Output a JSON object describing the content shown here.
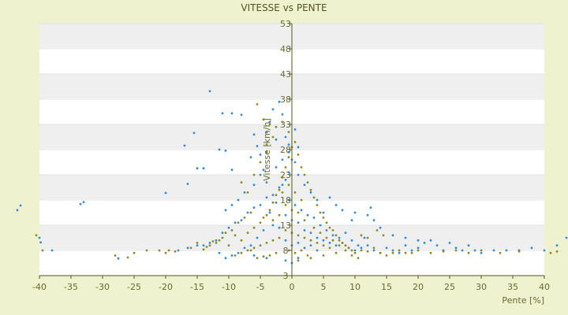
{
  "chart_data": {
    "type": "scatter",
    "title": "VITESSE vs PENTE",
    "xlabel": "Pente [%]",
    "ylabel": "Vitesse [km/h]",
    "xlim": [
      -40,
      40
    ],
    "ylim": [
      3,
      53
    ],
    "xticks": [
      -40,
      -35,
      -30,
      -25,
      -20,
      -15,
      -10,
      -5,
      0,
      5,
      10,
      15,
      20,
      25,
      30,
      35,
      40
    ],
    "yticks": [
      3,
      8,
      13,
      18,
      23,
      28,
      33,
      38,
      43,
      48,
      53
    ],
    "grid": "horizontal alternating bands",
    "legend": "none",
    "colors": {
      "background": "#eef2cf",
      "plot_area": "#ffffff",
      "band": "#efefef",
      "axis": "#555522",
      "series_a": "#2e8bd6",
      "series_b": "#8a8a20"
    },
    "series": [
      {
        "color": "#2e8bd6",
        "points": [
          [
            -43.5,
            16.0
          ],
          [
            -43.0,
            16.9
          ],
          [
            -40.0,
            10.5
          ],
          [
            -39.8,
            9.6
          ],
          [
            -38.0,
            8.0
          ],
          [
            -33.5,
            17.2
          ],
          [
            -33.0,
            17.6
          ],
          [
            -27.5,
            6.4
          ],
          [
            -20.0,
            19.4
          ],
          [
            -17.0,
            28.8
          ],
          [
            -16.5,
            21.2
          ],
          [
            -15.5,
            31.3
          ],
          [
            -15.0,
            24.3
          ],
          [
            -14.0,
            24.3
          ],
          [
            -13.0,
            39.6
          ],
          [
            -11.0,
            35.2
          ],
          [
            -10.5,
            27.8
          ],
          [
            -9.5,
            35.2
          ],
          [
            -9.5,
            24.0
          ],
          [
            -8.0,
            34.9
          ],
          [
            -11.5,
            28.0
          ],
          [
            -6.5,
            26.5
          ],
          [
            -6.0,
            31.0
          ],
          [
            -5.5,
            28.7
          ],
          [
            -5.0,
            27.0
          ],
          [
            -4.5,
            24.0
          ],
          [
            -4.0,
            31.5
          ],
          [
            -3.5,
            33.5
          ],
          [
            -3.0,
            36.0
          ],
          [
            -2.5,
            30.0
          ],
          [
            -2.0,
            37.5
          ],
          [
            -1.5,
            35.0
          ],
          [
            -1.0,
            30.5
          ],
          [
            -0.5,
            29.0
          ],
          [
            0.0,
            26.0
          ],
          [
            0.5,
            32.0
          ],
          [
            -1.0,
            22.0
          ],
          [
            -2.0,
            20.5
          ],
          [
            -3.0,
            19.0
          ],
          [
            -4.0,
            18.5
          ],
          [
            -5.0,
            17.0
          ],
          [
            -6.0,
            16.5
          ],
          [
            -7.0,
            15.5
          ],
          [
            -8.0,
            14.0
          ],
          [
            -9.0,
            13.5
          ],
          [
            -10.0,
            12.5
          ],
          [
            -11.0,
            11.5
          ],
          [
            -12.0,
            10.0
          ],
          [
            -13.0,
            9.5
          ],
          [
            -14.0,
            9.0
          ],
          [
            -15.0,
            9.0
          ],
          [
            -16.5,
            8.5
          ],
          [
            -18.0,
            8.0
          ],
          [
            -1.0,
            15.0
          ],
          [
            0.0,
            14.0
          ],
          [
            1.0,
            13.5
          ],
          [
            2.0,
            12.0
          ],
          [
            3.0,
            11.5
          ],
          [
            4.0,
            10.5
          ],
          [
            5.0,
            10.0
          ],
          [
            6.0,
            9.5
          ],
          [
            7.0,
            9.0
          ],
          [
            8.0,
            9.5
          ],
          [
            9.0,
            8.5
          ],
          [
            10.0,
            8.0
          ],
          [
            11.0,
            8.5
          ],
          [
            12.0,
            9.0
          ],
          [
            13.0,
            8.0
          ],
          [
            14.0,
            7.5
          ],
          [
            15.0,
            8.5
          ],
          [
            16.0,
            8.0
          ],
          [
            17.0,
            7.5
          ],
          [
            18.0,
            9.0
          ],
          [
            19.0,
            8.0
          ],
          [
            20.0,
            8.5
          ],
          [
            21.0,
            9.5
          ],
          [
            22.0,
            10.0
          ],
          [
            23.0,
            9.0
          ],
          [
            24.0,
            8.0
          ],
          [
            25.0,
            9.5
          ],
          [
            26.0,
            8.5
          ],
          [
            27.0,
            8.0
          ],
          [
            28.0,
            9.0
          ],
          [
            29.0,
            8.0
          ],
          [
            30.0,
            7.5
          ],
          [
            32.0,
            8.0
          ],
          [
            34.0,
            8.0
          ],
          [
            36.0,
            8.0
          ],
          [
            38.0,
            8.5
          ],
          [
            40.0,
            8.0
          ],
          [
            42.0,
            9.0
          ],
          [
            43.5,
            10.5
          ],
          [
            12.0,
            15.0
          ],
          [
            12.5,
            16.5
          ],
          [
            13.0,
            14.0
          ],
          [
            14.0,
            12.5
          ],
          [
            10.0,
            15.5
          ],
          [
            9.5,
            14.0
          ],
          [
            8.0,
            16.0
          ],
          [
            7.0,
            17.0
          ],
          [
            6.0,
            18.5
          ],
          [
            5.0,
            15.5
          ],
          [
            4.0,
            18.0
          ],
          [
            3.0,
            19.5
          ],
          [
            2.0,
            21.0
          ],
          [
            1.0,
            23.0
          ],
          [
            0.5,
            25.5
          ],
          [
            -0.5,
            23.5
          ],
          [
            -1.5,
            21.0
          ],
          [
            -2.5,
            17.5
          ],
          [
            -3.5,
            15.5
          ],
          [
            -4.5,
            12.0
          ],
          [
            -5.5,
            10.5
          ],
          [
            -6.5,
            9.0
          ],
          [
            -7.5,
            8.5
          ],
          [
            -8.5,
            7.5
          ],
          [
            -9.5,
            7.0
          ],
          [
            -10.5,
            6.5
          ],
          [
            -11.5,
            7.5
          ],
          [
            -1.0,
            10.0
          ],
          [
            0.0,
            9.0
          ],
          [
            1.0,
            9.5
          ],
          [
            2.0,
            8.5
          ],
          [
            3.0,
            9.0
          ],
          [
            4.0,
            8.0
          ],
          [
            -2.0,
            12.5
          ],
          [
            -3.0,
            13.0
          ],
          [
            -0.5,
            18.0
          ],
          [
            0.5,
            17.0
          ],
          [
            1.5,
            16.0
          ],
          [
            2.5,
            15.0
          ],
          [
            -1.5,
            26.0
          ],
          [
            -2.5,
            24.5
          ],
          [
            -0.5,
            27.5
          ],
          [
            1.0,
            28.5
          ],
          [
            -6.0,
            21.0
          ],
          [
            -7.5,
            19.5
          ],
          [
            -8.5,
            18.0
          ],
          [
            -9.5,
            17.0
          ],
          [
            -10.5,
            16.0
          ],
          [
            -4.0,
            21.5
          ],
          [
            -5.0,
            23.0
          ],
          [
            3.5,
            14.5
          ],
          [
            4.5,
            13.0
          ],
          [
            5.5,
            12.0
          ],
          [
            6.5,
            11.0
          ],
          [
            7.5,
            10.5
          ],
          [
            8.5,
            11.5
          ],
          [
            9.5,
            10.0
          ],
          [
            10.5,
            9.0
          ],
          [
            11.5,
            10.5
          ],
          [
            16.0,
            11.0
          ],
          [
            18.0,
            10.5
          ],
          [
            20.0,
            10.0
          ],
          [
            -1.0,
            6.0
          ],
          [
            0.0,
            5.5
          ],
          [
            1.0,
            6.5
          ],
          [
            -4.0,
            6.5
          ],
          [
            -6.0,
            7.0
          ]
        ]
      },
      {
        "color": "#8a8a20",
        "points": [
          [
            -40.5,
            11.0
          ],
          [
            -39.5,
            8.0
          ],
          [
            -28.0,
            7.0
          ],
          [
            -26.0,
            6.6
          ],
          [
            -25.0,
            7.5
          ],
          [
            -23.0,
            8.0
          ],
          [
            -21.0,
            8.0
          ],
          [
            -20.0,
            7.5
          ],
          [
            -19.5,
            8.0
          ],
          [
            -18.5,
            7.8
          ],
          [
            -16.0,
            8.5
          ],
          [
            -15.0,
            9.5
          ],
          [
            -14.0,
            8.2
          ],
          [
            -13.0,
            9.0
          ],
          [
            -12.0,
            9.5
          ],
          [
            -11.0,
            10.5
          ],
          [
            -10.0,
            9.0
          ],
          [
            -9.0,
            11.0
          ],
          [
            -8.0,
            10.0
          ],
          [
            -7.0,
            11.5
          ],
          [
            -6.0,
            12.5
          ],
          [
            -5.0,
            13.5
          ],
          [
            -4.5,
            14.5
          ],
          [
            -4.0,
            15.0
          ],
          [
            -3.5,
            16.0
          ],
          [
            -3.0,
            17.5
          ],
          [
            -2.5,
            19.0
          ],
          [
            -2.0,
            20.0
          ],
          [
            -1.5,
            22.5
          ],
          [
            -1.0,
            24.5
          ],
          [
            -0.5,
            26.5
          ],
          [
            0.0,
            28.5
          ],
          [
            -3.0,
            30.5
          ],
          [
            -4.0,
            29.0
          ],
          [
            -5.5,
            37.0
          ],
          [
            -4.5,
            34.0
          ],
          [
            -3.5,
            33.0
          ],
          [
            -2.5,
            32.5
          ],
          [
            -1.5,
            33.5
          ],
          [
            -0.5,
            31.5
          ],
          [
            0.5,
            29.5
          ],
          [
            1.0,
            27.0
          ],
          [
            1.5,
            24.5
          ],
          [
            2.0,
            23.0
          ],
          [
            2.5,
            21.5
          ],
          [
            3.0,
            20.0
          ],
          [
            3.5,
            18.5
          ],
          [
            4.0,
            17.0
          ],
          [
            4.5,
            15.5
          ],
          [
            5.0,
            14.5
          ],
          [
            5.5,
            13.5
          ],
          [
            6.0,
            12.5
          ],
          [
            6.5,
            12.0
          ],
          [
            7.0,
            11.0
          ],
          [
            7.5,
            10.0
          ],
          [
            8.0,
            9.5
          ],
          [
            8.5,
            9.0
          ],
          [
            9.0,
            8.5
          ],
          [
            9.5,
            8.0
          ],
          [
            10.0,
            7.5
          ],
          [
            11.0,
            8.0
          ],
          [
            12.0,
            7.8
          ],
          [
            13.0,
            8.5
          ],
          [
            14.0,
            7.5
          ],
          [
            15.0,
            7.0
          ],
          [
            16.0,
            7.5
          ],
          [
            17.0,
            8.0
          ],
          [
            18.0,
            7.5
          ],
          [
            19.0,
            7.5
          ],
          [
            20.0,
            8.0
          ],
          [
            22.0,
            7.5
          ],
          [
            24.0,
            7.8
          ],
          [
            26.0,
            8.0
          ],
          [
            28.0,
            7.5
          ],
          [
            30.0,
            8.0
          ],
          [
            33.0,
            7.5
          ],
          [
            36.0,
            7.8
          ],
          [
            41.0,
            7.5
          ],
          [
            42.0,
            7.8
          ],
          [
            -1.0,
            12.0
          ],
          [
            0.0,
            11.5
          ],
          [
            1.0,
            11.0
          ],
          [
            2.0,
            10.5
          ],
          [
            3.0,
            10.0
          ],
          [
            4.0,
            9.5
          ],
          [
            5.0,
            9.0
          ],
          [
            6.0,
            8.5
          ],
          [
            -2.0,
            10.5
          ],
          [
            -3.0,
            10.0
          ],
          [
            -4.0,
            9.5
          ],
          [
            -5.0,
            9.0
          ],
          [
            -6.0,
            8.5
          ],
          [
            -7.0,
            8.0
          ],
          [
            -8.0,
            7.5
          ],
          [
            -9.0,
            7.0
          ],
          [
            -1.0,
            17.0
          ],
          [
            0.0,
            16.0
          ],
          [
            1.0,
            15.5
          ],
          [
            2.0,
            14.0
          ],
          [
            -2.0,
            15.0
          ],
          [
            -3.0,
            14.0
          ],
          [
            -6.5,
            15.5
          ],
          [
            -7.5,
            14.5
          ],
          [
            -8.5,
            13.5
          ],
          [
            -9.5,
            12.0
          ],
          [
            -10.5,
            11.5
          ],
          [
            -11.5,
            10.0
          ],
          [
            -12.5,
            9.8
          ],
          [
            -13.5,
            8.7
          ],
          [
            0.5,
            19.5
          ],
          [
            1.5,
            18.0
          ],
          [
            -0.5,
            21.0
          ],
          [
            -1.5,
            19.5
          ],
          [
            3.5,
            12.5
          ],
          [
            4.5,
            11.5
          ],
          [
            5.5,
            10.5
          ],
          [
            6.5,
            10.0
          ],
          [
            7.5,
            9.0
          ],
          [
            8.5,
            8.0
          ],
          [
            9.5,
            7.0
          ],
          [
            10.5,
            6.5
          ],
          [
            -0.5,
            8.0
          ],
          [
            0.5,
            7.5
          ],
          [
            1.5,
            8.0
          ],
          [
            2.5,
            7.0
          ],
          [
            -2.5,
            7.5
          ],
          [
            -3.5,
            7.0
          ],
          [
            -5.5,
            6.5
          ],
          [
            -4.5,
            6.8
          ],
          [
            -6.5,
            8.0
          ],
          [
            -7.0,
            19.5
          ],
          [
            -6.0,
            23.0
          ],
          [
            -5.0,
            25.5
          ],
          [
            -4.0,
            27.5
          ],
          [
            -8.0,
            21.5
          ],
          [
            1.0,
            6.0
          ],
          [
            3.0,
            6.5
          ],
          [
            5.0,
            7.0
          ],
          [
            7.0,
            7.5
          ],
          [
            11.0,
            11.0
          ],
          [
            12.0,
            10.5
          ],
          [
            13.5,
            12.0
          ],
          [
            14.5,
            11.0
          ]
        ]
      }
    ]
  }
}
